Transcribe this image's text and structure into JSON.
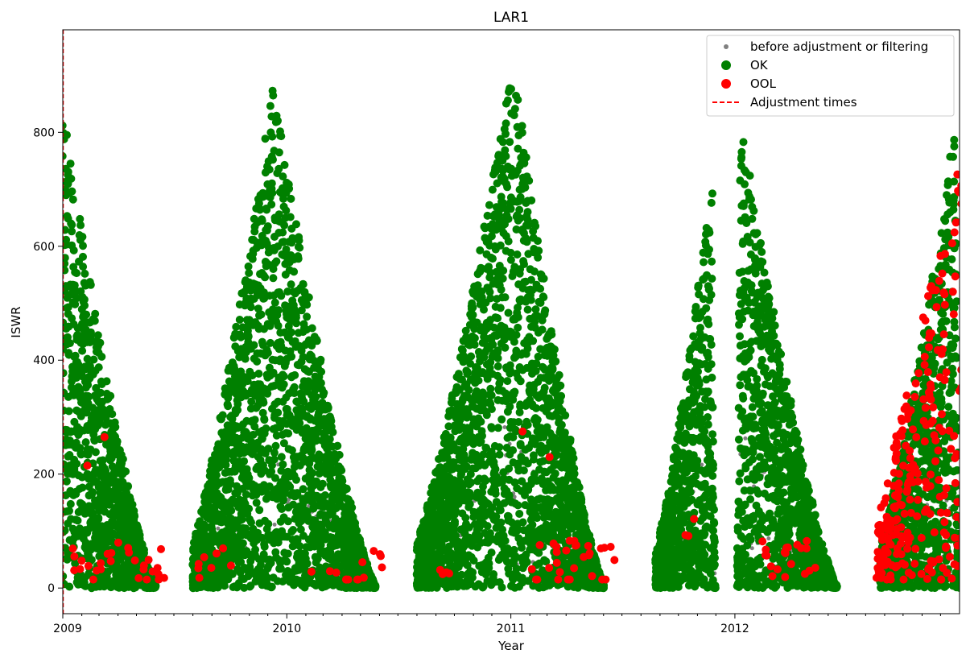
{
  "chart_data": {
    "type": "scatter",
    "title": "LAR1",
    "xlabel": "Year",
    "ylabel": "ISWR",
    "xlim": [
      "2009-01-01",
      "2013-01-01"
    ],
    "ylim": [
      -45,
      980
    ],
    "x_ticks": [
      "2009",
      "2010",
      "2011",
      "2012"
    ],
    "y_ticks": [
      0,
      200,
      400,
      600,
      800
    ],
    "grid": false,
    "legend_position": "top-right",
    "series": [
      {
        "name": "before adjustment or filtering",
        "color": "#808080",
        "marker": "small-dot"
      },
      {
        "name": "OK",
        "color": "#008000",
        "marker": "dot"
      },
      {
        "name": "OOL",
        "color": "#ff0000",
        "marker": "dot"
      },
      {
        "name": "Adjustment times",
        "color": "#ff0000",
        "marker": "dashed-line"
      }
    ],
    "adjustment_times": [
      "2009-01-01"
    ],
    "seasonal_envelopes": [
      {
        "start": "2009-01-01",
        "peak": "2009-01-01",
        "end": "2009-06-01",
        "peak_value": 845
      },
      {
        "start": "2009-08-01",
        "peak": "2009-12-10",
        "end": "2010-05-25",
        "peak_value": 885
      },
      {
        "start": "2010-08-01",
        "peak": "2011-01-05",
        "end": "2011-06-01",
        "peak_value": 930
      },
      {
        "start": "2011-08-25",
        "peak": "2011-11-25",
        "end": "2011-11-30",
        "peak_value": 725
      },
      {
        "start": "2012-01-05",
        "peak": "2012-01-10",
        "end": "2012-06-15",
        "peak_value": 835
      },
      {
        "start": "2012-08-25",
        "peak": "2012-12-25",
        "end": "2013-01-01",
        "peak_value": 820
      }
    ],
    "ool_clusters": [
      {
        "date": "2009-04-01",
        "value": 40,
        "spread_days": 90,
        "spread_value": 40,
        "count": 28
      },
      {
        "date": "2009-02-10",
        "value": 215,
        "spread_days": 0,
        "spread_value": 0,
        "count": 1
      },
      {
        "date": "2009-03-10",
        "value": 265,
        "spread_days": 0,
        "spread_value": 0,
        "count": 1
      },
      {
        "date": "2009-09-10",
        "value": 40,
        "spread_days": 45,
        "spread_value": 30,
        "count": 8
      },
      {
        "date": "2010-04-10",
        "value": 35,
        "spread_days": 60,
        "spread_value": 35,
        "count": 14
      },
      {
        "date": "2010-09-15",
        "value": 30,
        "spread_days": 20,
        "spread_value": 15,
        "count": 4
      },
      {
        "date": "2011-04-10",
        "value": 40,
        "spread_days": 70,
        "spread_value": 45,
        "count": 30
      },
      {
        "date": "2011-01-20",
        "value": 275,
        "spread_days": 0,
        "spread_value": 0,
        "count": 1
      },
      {
        "date": "2011-03-05",
        "value": 230,
        "spread_days": 0,
        "spread_value": 0,
        "count": 1
      },
      {
        "date": "2011-10-20",
        "value": 90,
        "spread_days": 10,
        "spread_value": 60,
        "count": 3
      },
      {
        "date": "2012-03-25",
        "value": 50,
        "spread_days": 50,
        "spread_value": 35,
        "count": 20
      },
      {
        "date": "2012-11-01",
        "value": 480,
        "spread_days": 75,
        "spread_value": 300,
        "count": 260
      }
    ]
  }
}
